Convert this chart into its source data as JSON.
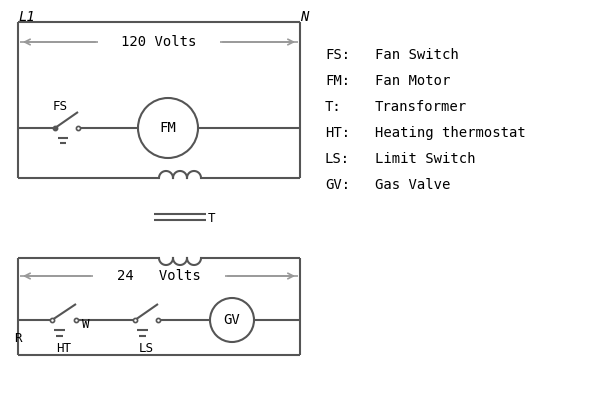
{
  "background_color": "#ffffff",
  "line_color": "#555555",
  "gray_color": "#999999",
  "legend_items": [
    [
      "FS:",
      "Fan Switch"
    ],
    [
      "FM:",
      "Fan Motor"
    ],
    [
      "T:",
      "Transformer"
    ],
    [
      "HT:",
      "Heating thermostat"
    ],
    [
      "LS:",
      "Limit Switch"
    ],
    [
      "GV:",
      "Gas Valve"
    ]
  ],
  "L1_label": "L1",
  "N_label": "N",
  "volts120_label": "120 Volts",
  "volts24_label": "24   Volts",
  "T_label": "T",
  "R_label": "R",
  "W_label": "W",
  "HT_label": "HT",
  "LS_label": "LS",
  "FS_label": "FS",
  "FM_label": "FM",
  "GV_label": "GV"
}
